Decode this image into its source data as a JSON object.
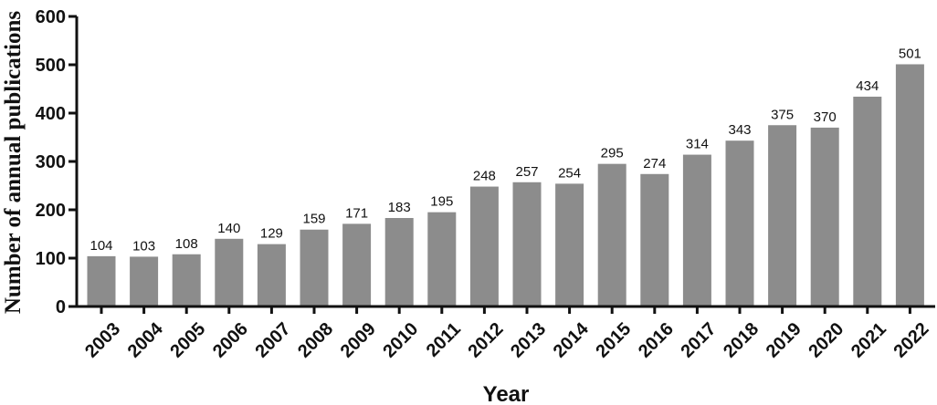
{
  "chart_data": {
    "type": "bar",
    "title": "",
    "xlabel": "Year",
    "ylabel": "Number of annual publications",
    "ylim": [
      0,
      600
    ],
    "yticks": [
      "0",
      "100",
      "200",
      "300",
      "400",
      "500",
      "600"
    ],
    "grid": false,
    "legend": "none",
    "bar_color": "#8c8c8c",
    "categories": [
      "2003",
      "2004",
      "2005",
      "2006",
      "2007",
      "2008",
      "2009",
      "2010",
      "2011",
      "2012",
      "2013",
      "2014",
      "2015",
      "2016",
      "2017",
      "2018",
      "2019",
      "2020",
      "2021",
      "2022"
    ],
    "values": [
      104,
      103,
      108,
      140,
      129,
      159,
      171,
      183,
      195,
      248,
      257,
      254,
      295,
      274,
      314,
      343,
      375,
      370,
      434,
      501
    ]
  }
}
